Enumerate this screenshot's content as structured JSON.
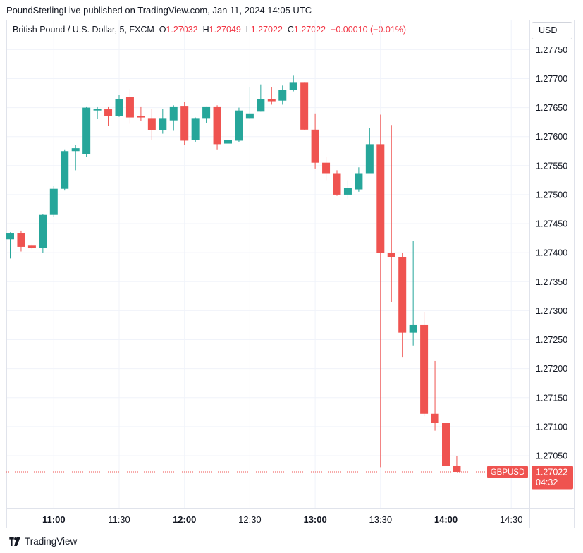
{
  "header": {
    "publisher_line": "PoundSterlingLive published on TradingView.com, Jan 11, 2024 14:05 UTC"
  },
  "legend": {
    "symbol": "British Pound / U.S. Dollar, 5, FXCM",
    "open_label": "O",
    "open": "1.27032",
    "high_label": "H",
    "high": "1.27049",
    "low_label": "L",
    "low": "1.27022",
    "close_label": "C",
    "close": "1.27022",
    "change": "−0.00010 (−0.01%)"
  },
  "currency_button": "USD",
  "price_tag": {
    "symbol": "GBPUSD",
    "price": "1.27022",
    "countdown": "04:32"
  },
  "footer": {
    "brand": "TradingView"
  },
  "colors": {
    "up": "#26a69a",
    "down": "#ef5350",
    "grid": "#f0f3fa",
    "axis_text": "#131722"
  },
  "chart_data": {
    "type": "candlestick",
    "interval": "5m",
    "ylim": [
      1.2696,
      1.27765
    ],
    "y_ticks": [
      "1.27050",
      "1.27100",
      "1.27150",
      "1.27200",
      "1.27250",
      "1.27300",
      "1.27350",
      "1.27400",
      "1.27450",
      "1.27500",
      "1.27550",
      "1.27600",
      "1.27650",
      "1.27700",
      "1.27750"
    ],
    "x_ticks": [
      {
        "label": "11:00",
        "index": 4,
        "bold": true
      },
      {
        "label": "11:30",
        "index": 10,
        "bold": false
      },
      {
        "label": "12:00",
        "index": 16,
        "bold": true
      },
      {
        "label": "12:30",
        "index": 22,
        "bold": false
      },
      {
        "label": "13:00",
        "index": 28,
        "bold": true
      },
      {
        "label": "13:30",
        "index": 34,
        "bold": false
      },
      {
        "label": "14:00",
        "index": 40,
        "bold": true
      },
      {
        "label": "14:30",
        "index": 46,
        "bold": false
      }
    ],
    "last_price": 1.27022,
    "candles": [
      {
        "o": 1.27423,
        "h": 1.27435,
        "l": 1.2739,
        "c": 1.27433
      },
      {
        "o": 1.27433,
        "h": 1.27438,
        "l": 1.27402,
        "c": 1.2741
      },
      {
        "o": 1.27412,
        "h": 1.27414,
        "l": 1.27406,
        "c": 1.27408
      },
      {
        "o": 1.27408,
        "h": 1.27467,
        "l": 1.274,
        "c": 1.27465
      },
      {
        "o": 1.27465,
        "h": 1.27515,
        "l": 1.27462,
        "c": 1.2751
      },
      {
        "o": 1.2751,
        "h": 1.27578,
        "l": 1.27507,
        "c": 1.27575
      },
      {
        "o": 1.27575,
        "h": 1.27585,
        "l": 1.27542,
        "c": 1.2758
      },
      {
        "o": 1.2757,
        "h": 1.27652,
        "l": 1.27565,
        "c": 1.2765
      },
      {
        "o": 1.27645,
        "h": 1.27652,
        "l": 1.2763,
        "c": 1.27648
      },
      {
        "o": 1.27647,
        "h": 1.27652,
        "l": 1.27618,
        "c": 1.27636
      },
      {
        "o": 1.27636,
        "h": 1.27672,
        "l": 1.27634,
        "c": 1.27665
      },
      {
        "o": 1.27668,
        "h": 1.27682,
        "l": 1.27622,
        "c": 1.27633
      },
      {
        "o": 1.27636,
        "h": 1.27652,
        "l": 1.27627,
        "c": 1.27633
      },
      {
        "o": 1.27632,
        "h": 1.27648,
        "l": 1.27594,
        "c": 1.27611
      },
      {
        "o": 1.27611,
        "h": 1.27648,
        "l": 1.27605,
        "c": 1.27632
      },
      {
        "o": 1.27628,
        "h": 1.27654,
        "l": 1.2761,
        "c": 1.27652
      },
      {
        "o": 1.27653,
        "h": 1.2766,
        "l": 1.27585,
        "c": 1.27593
      },
      {
        "o": 1.27594,
        "h": 1.27633,
        "l": 1.27591,
        "c": 1.27632
      },
      {
        "o": 1.27632,
        "h": 1.27652,
        "l": 1.27624,
        "c": 1.27652
      },
      {
        "o": 1.27652,
        "h": 1.27654,
        "l": 1.27578,
        "c": 1.27587
      },
      {
        "o": 1.27588,
        "h": 1.27605,
        "l": 1.27584,
        "c": 1.27594
      },
      {
        "o": 1.27593,
        "h": 1.2765,
        "l": 1.2759,
        "c": 1.27645
      },
      {
        "o": 1.27632,
        "h": 1.27685,
        "l": 1.2763,
        "c": 1.2764
      },
      {
        "o": 1.27643,
        "h": 1.2769,
        "l": 1.27643,
        "c": 1.27665
      },
      {
        "o": 1.27665,
        "h": 1.27685,
        "l": 1.27655,
        "c": 1.27661
      },
      {
        "o": 1.27662,
        "h": 1.27688,
        "l": 1.27655,
        "c": 1.2768
      },
      {
        "o": 1.2768,
        "h": 1.27705,
        "l": 1.27678,
        "c": 1.27694
      },
      {
        "o": 1.27694,
        "h": 1.27694,
        "l": 1.27612,
        "c": 1.27612
      },
      {
        "o": 1.27612,
        "h": 1.2764,
        "l": 1.27545,
        "c": 1.27555
      },
      {
        "o": 1.27555,
        "h": 1.27565,
        "l": 1.27525,
        "c": 1.27537
      },
      {
        "o": 1.27537,
        "h": 1.27542,
        "l": 1.27498,
        "c": 1.275
      },
      {
        "o": 1.275,
        "h": 1.27525,
        "l": 1.27493,
        "c": 1.27512
      },
      {
        "o": 1.27509,
        "h": 1.27547,
        "l": 1.27505,
        "c": 1.27537
      },
      {
        "o": 1.27537,
        "h": 1.27615,
        "l": 1.27537,
        "c": 1.27587
      },
      {
        "o": 1.27587,
        "h": 1.27638,
        "l": 1.2703,
        "c": 1.274
      },
      {
        "o": 1.274,
        "h": 1.2762,
        "l": 1.27315,
        "c": 1.27392
      },
      {
        "o": 1.27392,
        "h": 1.274,
        "l": 1.2722,
        "c": 1.27262
      },
      {
        "o": 1.27262,
        "h": 1.2742,
        "l": 1.2724,
        "c": 1.27275
      },
      {
        "o": 1.27275,
        "h": 1.27298,
        "l": 1.27118,
        "c": 1.27122
      },
      {
        "o": 1.27122,
        "h": 1.27213,
        "l": 1.27093,
        "c": 1.27107
      },
      {
        "o": 1.27107,
        "h": 1.27112,
        "l": 1.27025,
        "c": 1.27032
      },
      {
        "o": 1.27032,
        "h": 1.27049,
        "l": 1.27022,
        "c": 1.27022
      }
    ]
  }
}
